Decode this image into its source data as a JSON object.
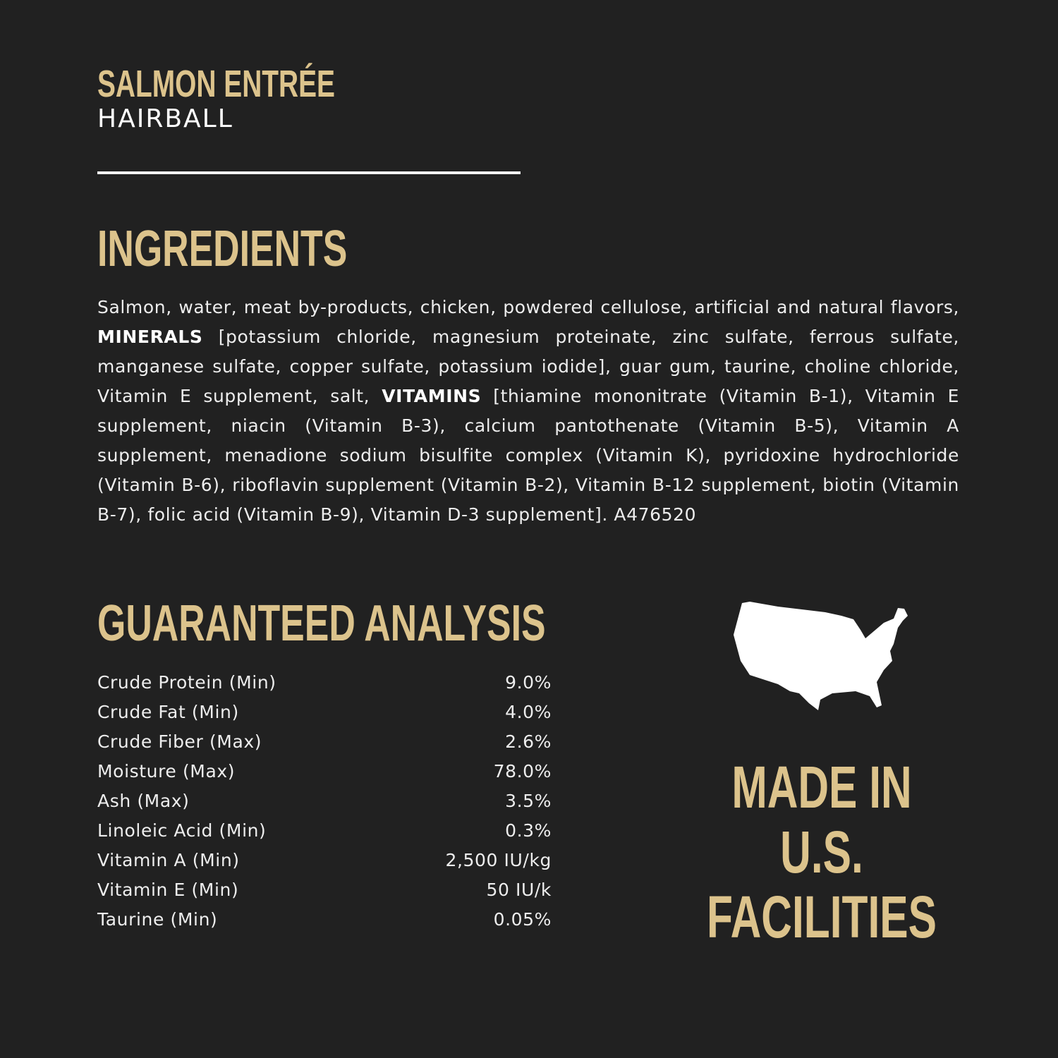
{
  "header": {
    "product": "SALMON ENTRÉE",
    "variant": "HAIRBALL"
  },
  "ingredients": {
    "heading": "INGREDIENTS",
    "part1": "Salmon, water, meat by-products, chicken, powdered cellulose, artificial and natural flavors, ",
    "minerals_label": "MINERALS",
    "part2": " [potassium chloride, magnesium proteinate, zinc sulfate, ferrous sulfate, manganese sulfate, copper sulfate, potassium iodide], guar gum, taurine, choline chloride, Vitamin E supplement, salt, ",
    "vitamins_label": "VITAMINS",
    "part3": " [thiamine mononitrate (Vitamin B-1), Vitamin E supplement, niacin (Vitamin B-3), calcium pantothenate (Vitamin B-5), Vitamin A supplement, menadione sodium bisulfite complex (Vitamin K), pyridoxine hydrochloride (Vitamin B-6), riboflavin supplement (Vitamin B-2), Vitamin B-12 supplement, biotin (Vitamin B-7), folic acid (Vitamin B-9), Vitamin D-3 supplement]. A476520"
  },
  "analysis": {
    "heading": "GUARANTEED ANALYSIS",
    "rows": [
      {
        "label": "Crude Protein (Min)",
        "value": "9.0%"
      },
      {
        "label": "Crude Fat (Min)",
        "value": "4.0%"
      },
      {
        "label": "Crude Fiber (Max)",
        "value": "2.6%"
      },
      {
        "label": "Moisture (Max)",
        "value": "78.0%"
      },
      {
        "label": "Ash (Max)",
        "value": "3.5%"
      },
      {
        "label": "Linoleic Acid (Min)",
        "value": "0.3%"
      },
      {
        "label": "Vitamin A (Min)",
        "value": "2,500 IU/kg"
      },
      {
        "label": "Vitamin E (Min)",
        "value": "50 IU/k"
      },
      {
        "label": "Taurine (Min)",
        "value": "0.05%"
      }
    ]
  },
  "badge": {
    "icon": "usa-map-icon",
    "line1": "MADE IN",
    "line2": "U.S.",
    "line3": "FACILITIES"
  },
  "colors": {
    "background": "#212121",
    "accent": "#dcc38c",
    "text": "#f2f2f2"
  }
}
